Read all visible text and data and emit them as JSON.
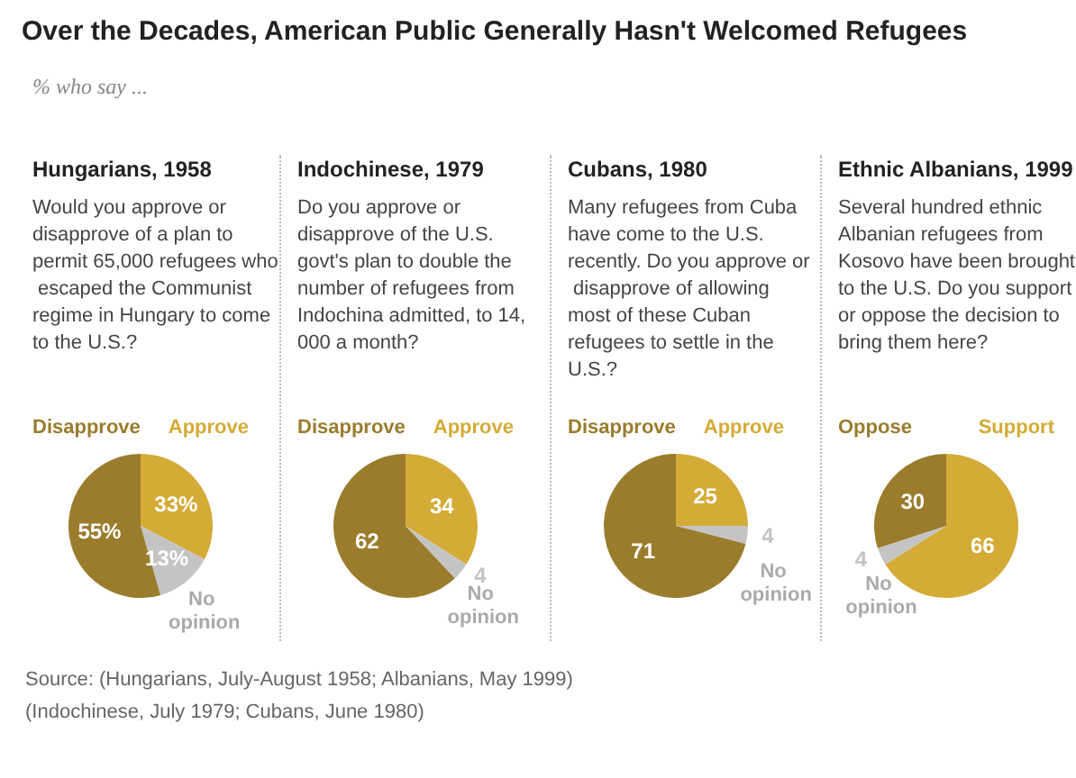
{
  "chart_data": [
    {
      "type": "other",
      "title": "Over the Decades, American Public Generally Hasn't Welcomed Refugees",
      "subtitle": "% who say ...",
      "annotations": [
        "Source: (Hungarians, July-August 1958; Albanians, May 1999)",
        "(Indochinese, July 1979; Cubans, June 1980)"
      ]
    },
    {
      "type": "pie",
      "title": "Hungarians, 1958",
      "annotations": [
        "Would you approve or disapprove of a plan to permit 65,000 refugees who escaped the Communist regime in Hungary to come to the U.S.?"
      ],
      "categories": [
        "Approve",
        "No opinion",
        "Disapprove"
      ],
      "values": [
        33,
        13,
        55
      ],
      "colors": [
        "#d4ab36",
        "#c4c4c4",
        "#9b7c2d"
      ],
      "value_labels": [
        "33%",
        "13%",
        "55%"
      ]
    },
    {
      "type": "pie",
      "title": "Indochinese, 1979",
      "annotations": [
        "Do you approve or disapprove of the U.S. govt's plan to double the number of refugees from Indochina admitted, to 14,000 a month?"
      ],
      "categories": [
        "Approve",
        "No opinion",
        "Disapprove"
      ],
      "values": [
        34,
        4,
        62
      ],
      "colors": [
        "#d4ab36",
        "#c4c4c4",
        "#9b7c2d"
      ],
      "data_labels": true
    },
    {
      "type": "pie",
      "title": "Cubans, 1980",
      "annotations": [
        "Many refugees from Cuba have come to the U.S. recently. Do you approve or disapprove of allowing most of these Cuban refugees to settle in the U.S.?"
      ],
      "categories": [
        "Approve",
        "No opinion",
        "Disapprove"
      ],
      "values": [
        25,
        4,
        71
      ],
      "colors": [
        "#d4ab36",
        "#c4c4c4",
        "#9b7c2d"
      ],
      "data_labels": true
    },
    {
      "type": "pie",
      "title": "Ethnic Albanians, 1999",
      "annotations": [
        "Several hundred ethnic Albanian refugees from Kosovo have been brought to the U.S. Do you support or oppose the decision to bring them here?"
      ],
      "categories": [
        "Support",
        "No opinion",
        "Oppose"
      ],
      "values": [
        66,
        4,
        30
      ],
      "colors": [
        "#d4ab36",
        "#c4c4c4",
        "#9b7c2d"
      ],
      "data_labels": true
    }
  ]
}
